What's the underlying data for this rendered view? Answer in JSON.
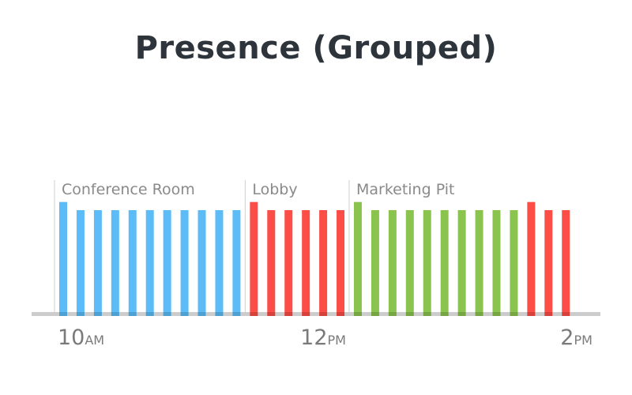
{
  "chart_data": {
    "type": "bar",
    "title": "Presence (Grouped)",
    "x_ticks": [
      {
        "num": "10",
        "unit": "AM",
        "bar_index": 0
      },
      {
        "num": "12",
        "unit": "PM",
        "bar_index": 14
      },
      {
        "num": "2",
        "unit": "PM",
        "bar_index": 29
      }
    ],
    "groups": [
      {
        "label": "Conference Room",
        "color": "#5bbcf7",
        "start_index": 0,
        "values": [
          1.08,
          1,
          1,
          1,
          1,
          1,
          1,
          1,
          1,
          1,
          1
        ]
      },
      {
        "label": "Lobby",
        "color": "#fc4d47",
        "start_index": 11,
        "values": [
          1.08,
          1,
          1,
          1,
          1,
          1
        ]
      },
      {
        "label": "Marketing Pit",
        "color": "#8bc34f",
        "start_index": 17,
        "values": [
          1.08,
          1,
          1,
          1,
          1,
          1,
          1,
          1,
          1,
          1
        ]
      },
      {
        "label": "",
        "color": "#fc4d47",
        "start_index": 27,
        "values": [
          1.08,
          1,
          1
        ]
      }
    ],
    "ylim": [
      0,
      1.2
    ],
    "grid": false,
    "legend": "none"
  }
}
